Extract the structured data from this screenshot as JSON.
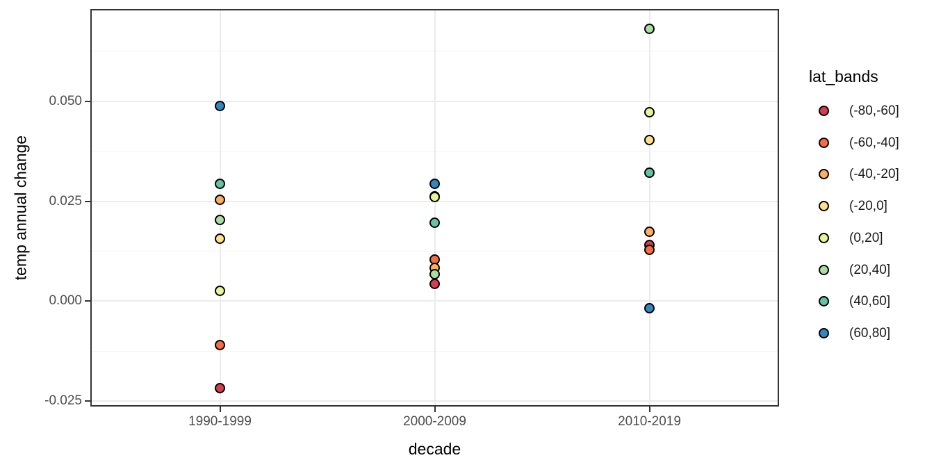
{
  "chart_data": {
    "type": "scatter",
    "title": "",
    "xlabel": "decade",
    "ylabel": "temp annual change",
    "categories": [
      "1990-1999",
      "2000-2009",
      "2010-2019"
    ],
    "y_tick_labels": [
      "0.050",
      "0.025",
      "0.000",
      "-0.025"
    ],
    "y_tick_values": [
      0.05,
      0.025,
      0.0,
      -0.025
    ],
    "y_minor_values": [
      0.0625,
      0.0375,
      0.0125,
      -0.0125
    ],
    "ylim": [
      -0.026,
      0.0727
    ],
    "grid": "major+minor",
    "legend_position": "right",
    "legend_title": "lat_bands",
    "series": [
      {
        "name": "(-80,-60]",
        "color": "#D53E4F",
        "values": [
          -0.0217,
          0.0044,
          0.014
        ]
      },
      {
        "name": "(-60,-40]",
        "color": "#F46D43",
        "values": [
          -0.011,
          0.0105,
          0.0128
        ]
      },
      {
        "name": "(-40,-20]",
        "color": "#FDAE61",
        "values": [
          0.0254,
          0.0084,
          0.0174
        ]
      },
      {
        "name": "(-20,0]",
        "color": "#FEE08B",
        "values": [
          0.0157,
          0.0262,
          0.0403
        ]
      },
      {
        "name": "(0,20]",
        "color": "#E6F598",
        "values": [
          0.0026,
          0.0261,
          0.0473
        ]
      },
      {
        "name": "(20,40]",
        "color": "#ABDDA4",
        "values": [
          0.0204,
          0.0068,
          0.0682
        ]
      },
      {
        "name": "(40,60]",
        "color": "#66C2A5",
        "values": [
          0.0294,
          0.0196,
          0.0321
        ]
      },
      {
        "name": "(60,80]",
        "color": "#3288BD",
        "values": [
          0.0489,
          0.0293,
          -0.0017
        ]
      }
    ],
    "colors": {
      "background": "#FFFFFF",
      "panel_border": "#333333",
      "grid_major": "#EBEBEB",
      "grid_minor": "#F4F4F4",
      "tick_mark": "#333333",
      "tick_text": "#4D4D4D",
      "title_text": "#000000",
      "point_stroke": "#000000"
    }
  }
}
